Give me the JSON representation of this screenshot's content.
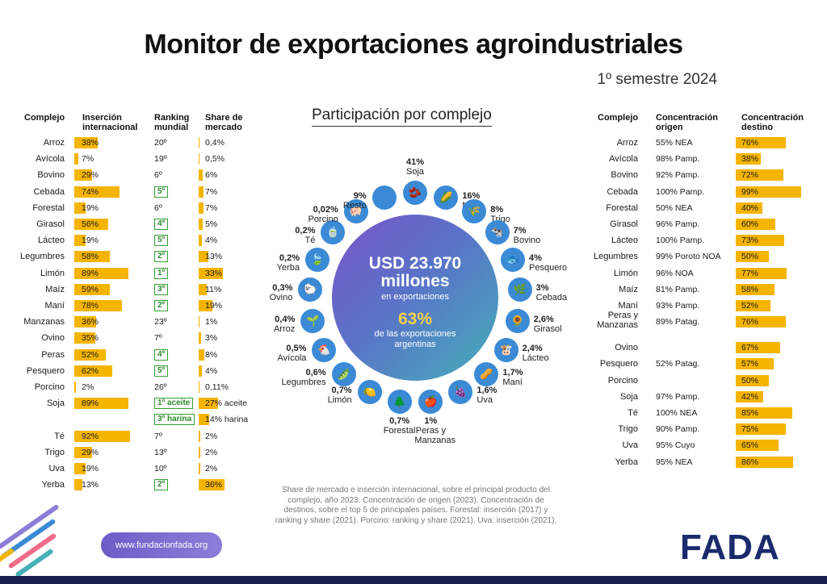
{
  "header": {
    "title": "Monitor de exportaciones agroindustriales",
    "subtitle": "1º semestre 2024"
  },
  "left_headers": {
    "complejo": "Complejo",
    "insercion": "Inserción internacional",
    "ranking": "Ranking mundial",
    "share": "Share de mercado"
  },
  "left_rows": [
    {
      "name": "Arroz",
      "ins": 38,
      "ins_label": "38%",
      "rank": "20º",
      "rank_box": false,
      "share": 0.4,
      "share_label": "0,4%"
    },
    {
      "name": "Avícola",
      "ins": 7,
      "ins_label": "7%",
      "rank": "19º",
      "rank_box": false,
      "share": 0.5,
      "share_label": "0,5%"
    },
    {
      "name": "Bovino",
      "ins": 29,
      "ins_label": "29%",
      "rank": "6º",
      "rank_box": false,
      "share": 6,
      "share_label": "6%"
    },
    {
      "name": "Cebada",
      "ins": 74,
      "ins_label": "74%",
      "rank": "5º",
      "rank_box": true,
      "share": 7,
      "share_label": "7%"
    },
    {
      "name": "Forestal",
      "ins": 19,
      "ins_label": "19%",
      "rank": "6º",
      "rank_box": false,
      "share": 7,
      "share_label": "7%"
    },
    {
      "name": "Girasol",
      "ins": 56,
      "ins_label": "56%",
      "rank": "4º",
      "rank_box": true,
      "share": 5,
      "share_label": "5%"
    },
    {
      "name": "Lácteo",
      "ins": 19,
      "ins_label": "19%",
      "rank": "5º",
      "rank_box": true,
      "share": 4,
      "share_label": "4%"
    },
    {
      "name": "Legumbres",
      "ins": 58,
      "ins_label": "58%",
      "rank": "2º",
      "rank_box": true,
      "share": 13,
      "share_label": "13%"
    },
    {
      "name": "Limón",
      "ins": 89,
      "ins_label": "89%",
      "rank": "1º",
      "rank_box": true,
      "share": 33,
      "share_label": "33%"
    },
    {
      "name": "Maíz",
      "ins": 59,
      "ins_label": "59%",
      "rank": "3º",
      "rank_box": true,
      "share": 11,
      "share_label": "11%"
    },
    {
      "name": "Maní",
      "ins": 78,
      "ins_label": "78%",
      "rank": "2º",
      "rank_box": true,
      "share": 19,
      "share_label": "19%"
    },
    {
      "name": "Manzanas",
      "ins": 36,
      "ins_label": "36%",
      "rank": "23º",
      "rank_box": false,
      "share": 1,
      "share_label": "1%"
    },
    {
      "name": "Ovino",
      "ins": 35,
      "ins_label": "35%",
      "rank": "7º",
      "rank_box": false,
      "share": 3,
      "share_label": "3%"
    },
    {
      "name": "Peras",
      "ins": 52,
      "ins_label": "52%",
      "rank": "4º",
      "rank_box": true,
      "share": 8,
      "share_label": "8%"
    },
    {
      "name": "Pesquero",
      "ins": 62,
      "ins_label": "62%",
      "rank": "5º",
      "rank_box": true,
      "share": 4,
      "share_label": "4%"
    },
    {
      "name": "Porcino",
      "ins": 2,
      "ins_label": "2%",
      "rank": "26º",
      "rank_box": false,
      "share": 0.11,
      "share_label": "0,11%"
    },
    {
      "name": "Soja",
      "ins": 89,
      "ins_label": "89%",
      "rank": "1º aceite",
      "rank_box": true,
      "share": 27,
      "share_label": "27% aceite"
    },
    {
      "name": "",
      "ins": null,
      "ins_label": "",
      "rank": "3º harina",
      "rank_box": true,
      "share": 14,
      "share_label": "14% harina"
    },
    {
      "name": "Té",
      "ins": 92,
      "ins_label": "92%",
      "rank": "7º",
      "rank_box": false,
      "share": 2,
      "share_label": "2%"
    },
    {
      "name": "Trigo",
      "ins": 29,
      "ins_label": "29%",
      "rank": "13º",
      "rank_box": false,
      "share": 2,
      "share_label": "2%"
    },
    {
      "name": "Uva",
      "ins": 19,
      "ins_label": "19%",
      "rank": "10º",
      "rank_box": false,
      "share": 2,
      "share_label": "2%"
    },
    {
      "name": "Yerba",
      "ins": 13,
      "ins_label": "13%",
      "rank": "2º",
      "rank_box": true,
      "share": 36,
      "share_label": "36%"
    }
  ],
  "participacion": {
    "title": "Participación por complejo",
    "center_amount": "USD 23.970 millones",
    "center_sub": "en exportaciones",
    "center_pct": "63%",
    "center_pct_sub": "de las exportaciones argentinas",
    "items": [
      {
        "pct": "41%",
        "name": "Soja",
        "icon": "🫘"
      },
      {
        "pct": "16%",
        "name": "Maíz",
        "icon": "🌽"
      },
      {
        "pct": "8%",
        "name": "Trigo",
        "icon": "🌾"
      },
      {
        "pct": "7%",
        "name": "Bovino",
        "icon": "🐄"
      },
      {
        "pct": "4%",
        "name": "Pesquero",
        "icon": "🐟"
      },
      {
        "pct": "3%",
        "name": "Cebada",
        "icon": "🌿"
      },
      {
        "pct": "2,6%",
        "name": "Girasol",
        "icon": "🌻"
      },
      {
        "pct": "2,4%",
        "name": "Lácteo",
        "icon": "🐮"
      },
      {
        "pct": "1,7%",
        "name": "Maní",
        "icon": "🥜"
      },
      {
        "pct": "1,6%",
        "name": "Uva",
        "icon": "🍇"
      },
      {
        "pct": "1%",
        "name": "Peras y Manzanas",
        "icon": "🍎"
      },
      {
        "pct": "0,7%",
        "name": "Forestal",
        "icon": "🌲"
      },
      {
        "pct": "0,7%",
        "name": "Limón",
        "icon": "🍋"
      },
      {
        "pct": "0,6%",
        "name": "Legumbres",
        "icon": "🫛"
      },
      {
        "pct": "0,5%",
        "name": "Avícola",
        "icon": "🐔"
      },
      {
        "pct": "0,4%",
        "name": "Arroz",
        "icon": "🌱"
      },
      {
        "pct": "0,3%",
        "name": "Ovino",
        "icon": "🐑"
      },
      {
        "pct": "0,2%",
        "name": "Yerba",
        "icon": "🍃"
      },
      {
        "pct": "0,2%",
        "name": "Té",
        "icon": "🍵"
      },
      {
        "pct": "0,02%",
        "name": "Porcino",
        "icon": "🐖"
      },
      {
        "pct": "9%",
        "name": "Resto",
        "icon": ""
      }
    ]
  },
  "right_headers": {
    "complejo": "Complejo",
    "origen": "Concentración origen",
    "destino": "Concentración destino"
  },
  "right_rows": [
    {
      "name": "Arroz",
      "origen": "55% NEA",
      "destino": 76,
      "destino_label": "76%"
    },
    {
      "name": "Avícola",
      "origen": "98% Pamp.",
      "destino": 38,
      "destino_label": "38%"
    },
    {
      "name": "Bovino",
      "origen": "92% Pamp.",
      "destino": 72,
      "destino_label": "72%"
    },
    {
      "name": "Cebada",
      "origen": "100% Pamp.",
      "destino": 99,
      "destino_label": "99%"
    },
    {
      "name": "Forestal",
      "origen": "50% NEA",
      "destino": 40,
      "destino_label": "40%"
    },
    {
      "name": "Girasol",
      "origen": "96% Pamp.",
      "destino": 60,
      "destino_label": "60%"
    },
    {
      "name": "Lácteo",
      "origen": "100% Pamp.",
      "destino": 73,
      "destino_label": "73%"
    },
    {
      "name": "Legumbres",
      "origen": "99% Poroto NOA",
      "destino": 50,
      "destino_label": "50%"
    },
    {
      "name": "Limón",
      "origen": "96% NOA",
      "destino": 77,
      "destino_label": "77%"
    },
    {
      "name": "Maíz",
      "origen": "81% Pamp.",
      "destino": 58,
      "destino_label": "58%"
    },
    {
      "name": "Maní",
      "origen": "93% Pamp.",
      "destino": 52,
      "destino_label": "52%"
    },
    {
      "name": "Peras y Manzanas",
      "origen": "89% Patag.",
      "destino": 76,
      "destino_label": "76%"
    },
    {
      "name": "Ovino",
      "origen": "",
      "destino": 67,
      "destino_label": "67%"
    },
    {
      "name": "Pesquero",
      "origen": "52% Patag.",
      "destino": 57,
      "destino_label": "57%"
    },
    {
      "name": "Porcino",
      "origen": "",
      "destino": 50,
      "destino_label": "50%"
    },
    {
      "name": "Soja",
      "origen": "97% Pamp.",
      "destino": 42,
      "destino_label": "42%"
    },
    {
      "name": "Té",
      "origen": "100% NEA",
      "destino": 85,
      "destino_label": "85%"
    },
    {
      "name": "Trigo",
      "origen": "90% Pamp.",
      "destino": 75,
      "destino_label": "75%"
    },
    {
      "name": "Uva",
      "origen": "95% Cuyo",
      "destino": 65,
      "destino_label": "65%"
    },
    {
      "name": "Yerba",
      "origen": "95% NEA",
      "destino": 86,
      "destino_label": "86%"
    }
  ],
  "footer": {
    "note": "Share de mercado e inserción internacional, sobre el principal producto del complejo, año 2023. Concentración de origen (2023). Concentración de destinos, sobre el top 5 de principales países. Forestal: inserción (2017) y ranking y share (2021). Porcino: ranking y share (2021). Uva: inserción (2021).",
    "url": "www.fundacionfada.org",
    "logo": "FADA"
  },
  "colors": {
    "bar": "#f5b400",
    "icon": "#3b8ad6",
    "rank_box": "#33a033",
    "navy": "#1a2a6c"
  },
  "chart_data": [
    {
      "type": "bar",
      "title": "Inserción internacional",
      "categories": [
        "Arroz",
        "Avícola",
        "Bovino",
        "Cebada",
        "Forestal",
        "Girasol",
        "Lácteo",
        "Legumbres",
        "Limón",
        "Maíz",
        "Maní",
        "Manzanas",
        "Ovino",
        "Peras",
        "Pesquero",
        "Porcino",
        "Soja",
        "Té",
        "Trigo",
        "Uva",
        "Yerba"
      ],
      "values": [
        38,
        7,
        29,
        74,
        19,
        56,
        19,
        58,
        89,
        59,
        78,
        36,
        35,
        52,
        62,
        2,
        89,
        92,
        29,
        19,
        13
      ]
    },
    {
      "type": "bar",
      "title": "Share de mercado",
      "categories": [
        "Arroz",
        "Avícola",
        "Bovino",
        "Cebada",
        "Forestal",
        "Girasol",
        "Lácteo",
        "Legumbres",
        "Limón",
        "Maíz",
        "Maní",
        "Manzanas",
        "Ovino",
        "Peras",
        "Pesquero",
        "Porcino",
        "Soja aceite",
        "Soja harina",
        "Té",
        "Trigo",
        "Uva",
        "Yerba"
      ],
      "values": [
        0.4,
        0.5,
        6,
        7,
        7,
        5,
        4,
        13,
        33,
        11,
        19,
        1,
        3,
        8,
        4,
        0.11,
        27,
        14,
        2,
        2,
        2,
        36
      ]
    },
    {
      "type": "bar",
      "title": "Concentración destino",
      "categories": [
        "Arroz",
        "Avícola",
        "Bovino",
        "Cebada",
        "Forestal",
        "Girasol",
        "Lácteo",
        "Legumbres",
        "Limón",
        "Maíz",
        "Maní",
        "Peras y Manzanas",
        "Ovino",
        "Pesquero",
        "Porcino",
        "Soja",
        "Té",
        "Trigo",
        "Uva",
        "Yerba"
      ],
      "values": [
        76,
        38,
        72,
        99,
        40,
        60,
        73,
        50,
        77,
        58,
        52,
        76,
        67,
        57,
        50,
        42,
        85,
        75,
        65,
        86
      ]
    },
    {
      "type": "pie",
      "title": "Participación por complejo",
      "categories": [
        "Soja",
        "Maíz",
        "Trigo",
        "Bovino",
        "Pesquero",
        "Cebada",
        "Girasol",
        "Lácteo",
        "Maní",
        "Uva",
        "Peras y Manzanas",
        "Forestal",
        "Limón",
        "Legumbres",
        "Avícola",
        "Arroz",
        "Ovino",
        "Yerba",
        "Té",
        "Porcino",
        "Resto"
      ],
      "values": [
        41,
        16,
        8,
        7,
        4,
        3,
        2.6,
        2.4,
        1.7,
        1.6,
        1,
        0.7,
        0.7,
        0.6,
        0.5,
        0.4,
        0.3,
        0.2,
        0.2,
        0.02,
        9
      ]
    }
  ]
}
